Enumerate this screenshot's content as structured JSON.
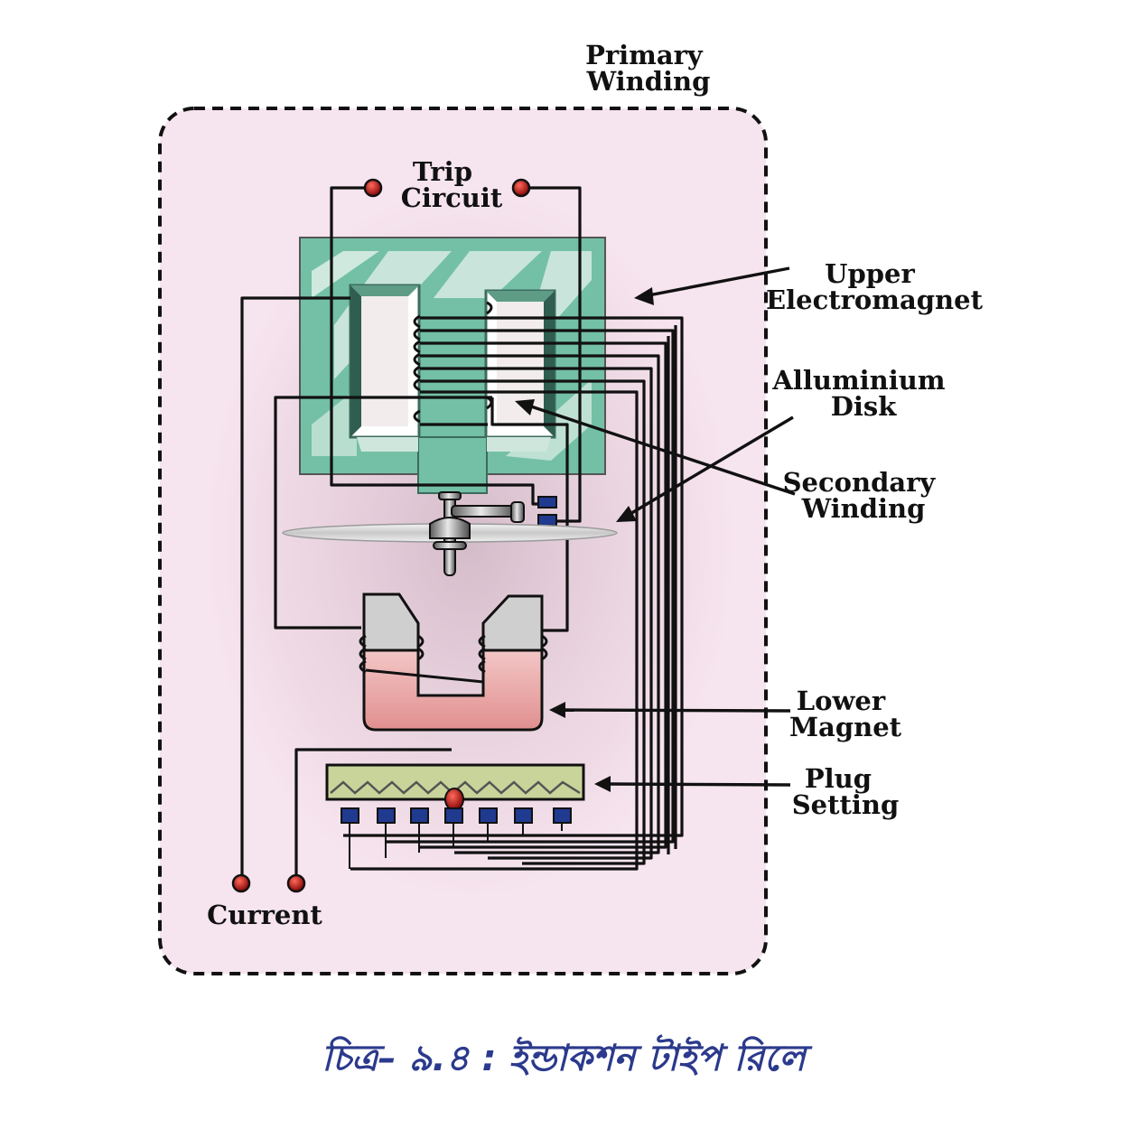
{
  "labels": {
    "primary_winding": [
      "Primary",
      "Winding"
    ],
    "trip_circuit": [
      "Trip",
      "Circuit"
    ],
    "upper_electromagnet": [
      "Upper",
      "Electromagnet"
    ],
    "aluminium_disk": [
      "Alluminium",
      "Disk"
    ],
    "secondary_winding": [
      "Secondary",
      "Winding"
    ],
    "lower_magnet": [
      "Lower",
      "Magnet"
    ],
    "plug_setting": [
      "Plug",
      "Setting"
    ],
    "current": "Current"
  },
  "caption": "চিত্র– ৯.৪ : ইন্ডাকশন টাইপ রিলে",
  "colors": {
    "enclosure_fill": "#f6e4ee",
    "enclosure_border": "#111111",
    "upper_core": "#73c0a6",
    "lower_magnet_grey": "#cfcfcf",
    "lower_magnet_pink": "#e89a9a",
    "plug_bar": "#c8d49a",
    "terminal_red": "#b01616",
    "plug_square": "#1f3a8f",
    "caption": "#2b3a8c"
  }
}
